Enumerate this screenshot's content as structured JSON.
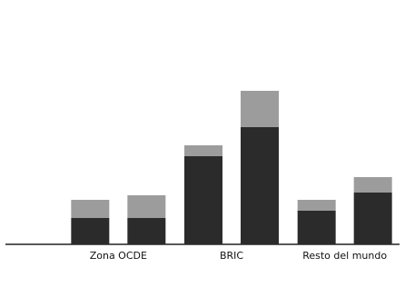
{
  "chart_data": {
    "type": "bar",
    "categories": [
      "Zona OCDE",
      "BRIC",
      "Resto del mundo"
    ],
    "bar_sets": [
      {
        "series": [
          {
            "color": "#2b2b2b",
            "values": [
              14.5,
              48.5,
              18.5
            ]
          },
          {
            "color": "#9c9c9c",
            "values": [
              10,
              6,
              6
            ]
          }
        ]
      },
      {
        "series": [
          {
            "color": "#2b2b2b",
            "values": [
              14.5,
              64.5,
              28.5
            ]
          },
          {
            "color": "#9c9c9c",
            "values": [
              12.5,
              20,
              8.5
            ]
          }
        ]
      }
    ],
    "ylim": [
      0,
      100
    ]
  }
}
